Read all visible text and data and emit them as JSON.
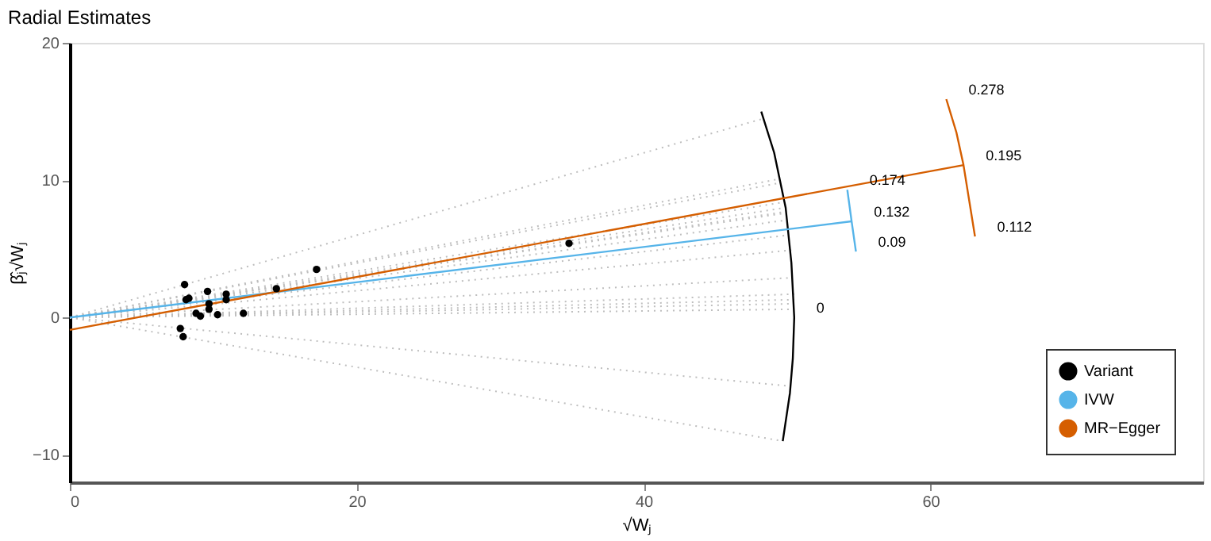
{
  "chart_data": {
    "type": "scatter",
    "title": "Radial Estimates",
    "xlabel": "√Wⱼ",
    "ylabel": "β̂ⱼ√Wⱼ",
    "xlim": [
      0,
      79
    ],
    "ylim": [
      -12,
      20
    ],
    "xticks": [
      0,
      20,
      40,
      60
    ],
    "yticks": [
      -10,
      0,
      10,
      20
    ],
    "grid": false,
    "legend": "bottom right",
    "series": [
      {
        "type": "line",
        "line_style": "dotted",
        "color": "#bebebe",
        "x": [
          0,
          48.4
        ],
        "values": [
          0,
          14.5
        ]
      },
      {
        "type": "line",
        "line_style": "dotted",
        "color": "#bebebe",
        "x": [
          0,
          49.9
        ],
        "values": [
          0,
          8.0
        ]
      },
      {
        "type": "line",
        "line_style": "dotted",
        "color": "#bebebe",
        "x": [
          0,
          49.8
        ],
        "values": [
          0,
          8.4
        ]
      },
      {
        "type": "line",
        "line_style": "dotted",
        "color": "#bebebe",
        "x": [
          0,
          49.5
        ],
        "values": [
          0,
          9.8
        ]
      },
      {
        "type": "line",
        "line_style": "dotted",
        "color": "#bebebe",
        "x": [
          0,
          50.3
        ],
        "values": [
          0,
          4.9
        ]
      },
      {
        "type": "line",
        "line_style": "dotted",
        "color": "#bebebe",
        "x": [
          0,
          50.4
        ],
        "values": [
          0,
          2.9
        ]
      },
      {
        "type": "line",
        "line_style": "dotted",
        "color": "#bebebe",
        "x": [
          0,
          50.5
        ],
        "values": [
          0,
          1.7
        ]
      },
      {
        "type": "line",
        "line_style": "dotted",
        "color": "#bebebe",
        "x": [
          0,
          50.5
        ],
        "values": [
          0,
          0.6
        ]
      },
      {
        "type": "line",
        "line_style": "dotted",
        "color": "#bebebe",
        "x": [
          0,
          50.5
        ],
        "values": [
          0,
          1.0
        ]
      },
      {
        "type": "line",
        "line_style": "dotted",
        "color": "#bebebe",
        "x": [
          0,
          49.9
        ],
        "values": [
          0,
          7.6
        ]
      },
      {
        "type": "line",
        "line_style": "dotted",
        "color": "#bebebe",
        "x": [
          0,
          50.1
        ],
        "values": [
          0,
          6.0
        ]
      },
      {
        "type": "line",
        "line_style": "dotted",
        "color": "#bebebe",
        "x": [
          0,
          50.5
        ],
        "values": [
          0,
          1.3
        ]
      },
      {
        "type": "line",
        "line_style": "dotted",
        "color": "#bebebe",
        "x": [
          0,
          50.0
        ],
        "values": [
          0,
          7.1
        ]
      },
      {
        "type": "line",
        "line_style": "dotted",
        "color": "#bebebe",
        "x": [
          0,
          49.5
        ],
        "values": [
          0,
          10.1
        ]
      },
      {
        "type": "line",
        "line_style": "dotted",
        "color": "#bebebe",
        "x": [
          0,
          49.9
        ],
        "values": [
          0,
          7.7
        ]
      },
      {
        "type": "line",
        "line_style": "dotted",
        "color": "#bebebe",
        "x": [
          0,
          50.2
        ],
        "values": [
          0,
          -5.0
        ]
      },
      {
        "type": "line",
        "line_style": "dotted",
        "color": "#bebebe",
        "x": [
          0,
          49.7
        ],
        "values": [
          0,
          -9.0
        ]
      },
      {
        "type": "line",
        "line_style": "solid",
        "color": "#000000",
        "x": [
          48.2,
          49.1,
          49.9,
          50.3,
          50.5,
          50.4,
          50.2,
          49.7
        ],
        "values": [
          15.0,
          12.0,
          8.0,
          4.0,
          0.0,
          -3.0,
          -5.5,
          -9.0
        ]
      },
      {
        "type": "line",
        "line_style": "solid",
        "color": "#56b4e9",
        "x": [
          54.2,
          54.5,
          54.8
        ],
        "values": [
          9.3,
          7.0,
          4.8
        ]
      },
      {
        "type": "line",
        "line_style": "solid",
        "color": "#d55e00",
        "x": [
          61.1,
          61.8,
          62.3,
          62.7,
          63.1
        ],
        "values": [
          15.9,
          13.5,
          11.1,
          8.5,
          5.9
        ]
      },
      {
        "marker": "circle",
        "name": "Variant",
        "color": "#000000",
        "x": [
          8.0,
          8.1,
          8.3,
          9.6,
          9.7,
          9.7,
          8.8,
          9.1,
          10.3,
          10.9,
          10.9,
          12.1,
          14.4,
          17.2,
          34.8,
          7.7,
          7.9
        ],
        "values": [
          2.4,
          1.3,
          1.4,
          1.9,
          1.0,
          0.6,
          0.3,
          0.1,
          0.2,
          1.7,
          1.3,
          0.3,
          2.1,
          3.5,
          5.4,
          -0.8,
          -1.4
        ]
      },
      {
        "type": "line",
        "line_style": "solid",
        "name": "IVW",
        "color": "#56b4e9",
        "x": [
          0,
          54.5
        ],
        "values": [
          0,
          7.0
        ]
      },
      {
        "type": "line",
        "line_style": "solid",
        "name": "MR−Egger",
        "color": "#d55e00",
        "x": [
          0,
          62.3
        ],
        "values": [
          -0.9,
          11.1
        ]
      }
    ],
    "annotations": [
      {
        "text": "0.278",
        "x": 61.1,
        "y": 15.9
      },
      {
        "text": "0.195",
        "x": 62.3,
        "y": 11.1
      },
      {
        "text": "0.112",
        "x": 63.1,
        "y": 5.9
      },
      {
        "text": "0.174",
        "x": 54.2,
        "y": 9.3
      },
      {
        "text": "0.132",
        "x": 54.5,
        "y": 7.0
      },
      {
        "text": "0.09",
        "x": 54.8,
        "y": 4.8
      },
      {
        "text": "0",
        "x": 50.5,
        "y": 0.0
      }
    ]
  }
}
